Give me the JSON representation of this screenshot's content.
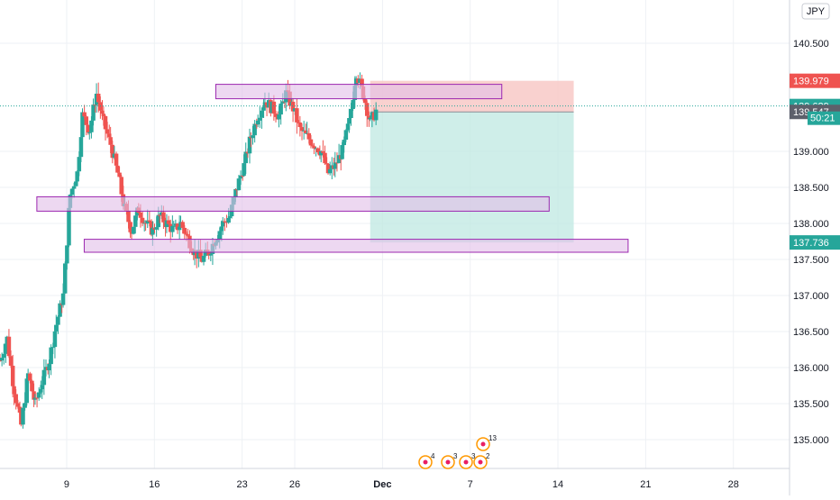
{
  "currency_badge": "JPY",
  "countdown": "50:21",
  "colors": {
    "up": "#26a69a",
    "down": "#ef5350",
    "zone_fill": "#e1bee7",
    "zone_stroke": "#9c27b0",
    "stop_fill": "#f8c9c7",
    "target_fill": "#bfe8e2",
    "grid": "#eef1f4",
    "axis_text": "#131722",
    "last_price_line": "#26a69a"
  },
  "event_markers": {
    "labels": [
      "4",
      "3",
      "3",
      "2",
      "13"
    ]
  },
  "chart_data": {
    "type": "candlestick",
    "title": "",
    "grid": true,
    "ylim": [
      134.6,
      141.1
    ],
    "y_ticks": [
      135.0,
      135.5,
      136.0,
      136.5,
      137.0,
      137.5,
      138.0,
      138.5,
      139.0,
      140.5
    ],
    "y_tick_labels": [
      "135.000",
      "135.500",
      "136.000",
      "136.500",
      "137.000",
      "137.500",
      "138.000",
      "138.500",
      "139.000",
      "140.500"
    ],
    "x_ticks": [
      {
        "label": "9",
        "x": 5
      },
      {
        "label": "16",
        "x": 10
      },
      {
        "label": "23",
        "x": 15
      },
      {
        "label": "26",
        "x": 18
      },
      {
        "label": "Dec",
        "x": 23
      },
      {
        "label": "7",
        "x": 28
      },
      {
        "label": "14",
        "x": 33
      },
      {
        "label": "21",
        "x": 38
      },
      {
        "label": "28",
        "x": 43
      }
    ],
    "x_range": [
      1.2,
      46.2
    ],
    "price_labels": [
      {
        "label": "139.979",
        "value": 139.979,
        "color": "#ef5350"
      },
      {
        "label": "139.629",
        "value": 139.629,
        "color": "#26a69a"
      },
      {
        "label": "139.547",
        "value": 139.547,
        "color": "#5d606b"
      },
      {
        "label": "137.736",
        "value": 137.736,
        "color": "#26a69a"
      }
    ],
    "last_price": 139.629,
    "zones": [
      {
        "x_start": 13.5,
        "x_end": 29.8,
        "y_low": 139.73,
        "y_high": 139.93
      },
      {
        "x_start": 3.3,
        "x_end": 32.5,
        "y_low": 138.17,
        "y_high": 138.37
      },
      {
        "x_start": 6.0,
        "x_end": 37.0,
        "y_low": 137.6,
        "y_high": 137.78
      }
    ],
    "position": {
      "x_start": 22.3,
      "x_end": 33.9,
      "entry": 139.547,
      "stop": 139.979,
      "target": 137.736
    },
    "price_path": [
      [
        1.2,
        136.1
      ],
      [
        1.6,
        136.4
      ],
      [
        2.0,
        135.7
      ],
      [
        2.4,
        135.2
      ],
      [
        2.8,
        135.9
      ],
      [
        3.2,
        135.5
      ],
      [
        3.6,
        135.8
      ],
      [
        4.0,
        136.1
      ],
      [
        4.4,
        136.6
      ],
      [
        4.8,
        137.0
      ],
      [
        5.2,
        138.4
      ],
      [
        5.6,
        138.7
      ],
      [
        5.9,
        139.5
      ],
      [
        6.3,
        139.3
      ],
      [
        6.7,
        139.8
      ],
      [
        7.1,
        139.4
      ],
      [
        7.5,
        139.1
      ],
      [
        7.9,
        138.7
      ],
      [
        8.3,
        138.2
      ],
      [
        8.7,
        137.9
      ],
      [
        9.1,
        138.2
      ],
      [
        9.5,
        138.0
      ],
      [
        9.9,
        137.9
      ],
      [
        10.3,
        138.1
      ],
      [
        10.7,
        138.0
      ],
      [
        11.1,
        137.9
      ],
      [
        11.5,
        138.0
      ],
      [
        11.9,
        137.8
      ],
      [
        12.3,
        137.6
      ],
      [
        12.7,
        137.5
      ],
      [
        13.1,
        137.6
      ],
      [
        13.5,
        137.8
      ],
      [
        13.9,
        138.0
      ],
      [
        14.3,
        138.1
      ],
      [
        14.7,
        138.5
      ],
      [
        15.1,
        138.8
      ],
      [
        15.5,
        139.2
      ],
      [
        15.9,
        139.5
      ],
      [
        16.3,
        139.7
      ],
      [
        16.7,
        139.6
      ],
      [
        17.1,
        139.5
      ],
      [
        17.5,
        139.8
      ],
      [
        17.9,
        139.6
      ],
      [
        18.3,
        139.3
      ],
      [
        18.7,
        139.2
      ],
      [
        19.1,
        139.1
      ],
      [
        19.5,
        139.0
      ],
      [
        19.9,
        138.7
      ],
      [
        20.3,
        138.8
      ],
      [
        20.7,
        139.0
      ],
      [
        21.1,
        139.4
      ],
      [
        21.5,
        140.1
      ],
      [
        21.9,
        139.8
      ],
      [
        22.3,
        139.4
      ],
      [
        22.7,
        139.6
      ]
    ]
  }
}
